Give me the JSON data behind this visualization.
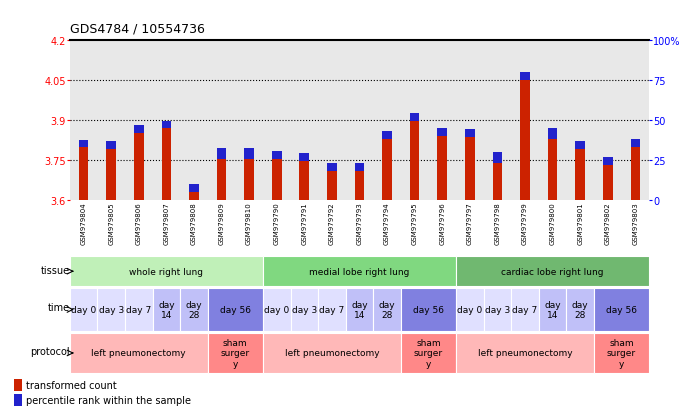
{
  "title": "GDS4784 / 10554736",
  "samples": [
    "GSM979804",
    "GSM979805",
    "GSM979806",
    "GSM979807",
    "GSM979808",
    "GSM979809",
    "GSM979810",
    "GSM979790",
    "GSM979791",
    "GSM979792",
    "GSM979793",
    "GSM979794",
    "GSM979795",
    "GSM979796",
    "GSM979797",
    "GSM979798",
    "GSM979799",
    "GSM979800",
    "GSM979801",
    "GSM979802",
    "GSM979803"
  ],
  "red_values": [
    3.8,
    3.79,
    3.85,
    3.87,
    3.63,
    3.755,
    3.755,
    3.755,
    3.745,
    3.71,
    3.71,
    3.83,
    3.895,
    3.84,
    3.835,
    3.74,
    4.05,
    3.83,
    3.79,
    3.73,
    3.8
  ],
  "blue_values": [
    0.025,
    0.03,
    0.03,
    0.025,
    0.03,
    0.04,
    0.04,
    0.03,
    0.03,
    0.03,
    0.03,
    0.03,
    0.03,
    0.03,
    0.03,
    0.04,
    0.03,
    0.04,
    0.03,
    0.03,
    0.03
  ],
  "ylim_left": [
    3.6,
    4.2
  ],
  "yticks_left": [
    3.6,
    3.75,
    3.9,
    4.05,
    4.2
  ],
  "ytick_labels_left": [
    "3.6",
    "3.75",
    "3.9",
    "4.05",
    "4.2"
  ],
  "ytick_labels_right": [
    "0",
    "25",
    "50",
    "75",
    "100%"
  ],
  "right_pcts": [
    0,
    25,
    50,
    75,
    100
  ],
  "baseline": 3.6,
  "dotted_yticks": [
    3.75,
    3.9,
    4.05
  ],
  "bar_width": 0.35,
  "red_color": "#cc2200",
  "blue_color": "#2222cc",
  "chart_bg": "#e8e8e8",
  "plot_bg": "#ffffff",
  "tissue_data": [
    {
      "label": "whole right lung",
      "start": 0,
      "end": 6,
      "color": "#c0f0b8"
    },
    {
      "label": "medial lobe right lung",
      "start": 7,
      "end": 13,
      "color": "#80d880"
    },
    {
      "label": "cardiac lobe right lung",
      "start": 14,
      "end": 20,
      "color": "#70b870"
    }
  ],
  "time_data": [
    {
      "label": "day 0",
      "start": 0,
      "end": 0,
      "color": "#e0e0ff"
    },
    {
      "label": "day 3",
      "start": 1,
      "end": 1,
      "color": "#e0e0ff"
    },
    {
      "label": "day 7",
      "start": 2,
      "end": 2,
      "color": "#e0e0ff"
    },
    {
      "label": "day\n14",
      "start": 3,
      "end": 3,
      "color": "#c0c0f8"
    },
    {
      "label": "day\n28",
      "start": 4,
      "end": 4,
      "color": "#c0c0f8"
    },
    {
      "label": "day 56",
      "start": 5,
      "end": 6,
      "color": "#8080e0"
    },
    {
      "label": "day 0",
      "start": 7,
      "end": 7,
      "color": "#e0e0ff"
    },
    {
      "label": "day 3",
      "start": 8,
      "end": 8,
      "color": "#e0e0ff"
    },
    {
      "label": "day 7",
      "start": 9,
      "end": 9,
      "color": "#e0e0ff"
    },
    {
      "label": "day\n14",
      "start": 10,
      "end": 10,
      "color": "#c0c0f8"
    },
    {
      "label": "day\n28",
      "start": 11,
      "end": 11,
      "color": "#c0c0f8"
    },
    {
      "label": "day 56",
      "start": 12,
      "end": 13,
      "color": "#8080e0"
    },
    {
      "label": "day 0",
      "start": 14,
      "end": 14,
      "color": "#e0e0ff"
    },
    {
      "label": "day 3",
      "start": 15,
      "end": 15,
      "color": "#e0e0ff"
    },
    {
      "label": "day 7",
      "start": 16,
      "end": 16,
      "color": "#e0e0ff"
    },
    {
      "label": "day\n14",
      "start": 17,
      "end": 17,
      "color": "#c0c0f8"
    },
    {
      "label": "day\n28",
      "start": 18,
      "end": 18,
      "color": "#c0c0f8"
    },
    {
      "label": "day 56",
      "start": 19,
      "end": 20,
      "color": "#8080e0"
    }
  ],
  "protocol_data": [
    {
      "label": "left pneumonectomy",
      "start": 0,
      "end": 4,
      "color": "#ffb8b8"
    },
    {
      "label": "sham\nsurger\ny",
      "start": 5,
      "end": 6,
      "color": "#ff8888"
    },
    {
      "label": "left pneumonectomy",
      "start": 7,
      "end": 11,
      "color": "#ffb8b8"
    },
    {
      "label": "sham\nsurger\ny",
      "start": 12,
      "end": 13,
      "color": "#ff8888"
    },
    {
      "label": "left pneumonectomy",
      "start": 14,
      "end": 18,
      "color": "#ffb8b8"
    },
    {
      "label": "sham\nsurger\ny",
      "start": 19,
      "end": 20,
      "color": "#ff8888"
    }
  ]
}
